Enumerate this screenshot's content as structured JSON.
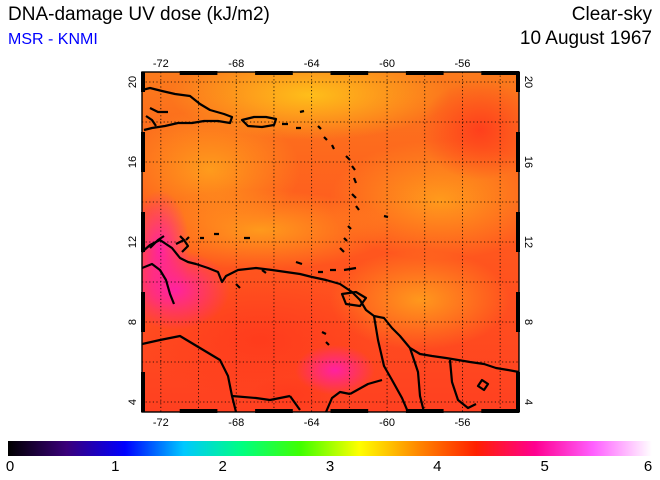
{
  "header": {
    "title": "DNA-damage UV dose (kJ/m2)",
    "source": "MSR - KNMI",
    "sky_condition": "Clear-sky",
    "date": "10 August 1967"
  },
  "map": {
    "lon_range": [
      -73,
      -53
    ],
    "lat_range": [
      3.5,
      20.5
    ],
    "lon_ticks": [
      "-72",
      "-68",
      "-64",
      "-60",
      "-56"
    ],
    "lat_ticks": [
      "4",
      "8",
      "12",
      "16",
      "20"
    ],
    "lon_values": [
      -72,
      -68,
      -64,
      -60,
      -56
    ],
    "lat_values": [
      4,
      8,
      12,
      16,
      20
    ],
    "grid": "dotted",
    "field_colors": {
      "low": "#f89018",
      "mid": "#ff5a1e",
      "high": "#ff2d6e",
      "peak": "#ff1fa8"
    }
  },
  "colorbar": {
    "labels": [
      "0",
      "1",
      "2",
      "3",
      "4",
      "5",
      "6"
    ],
    "values": [
      0,
      1,
      2,
      3,
      4,
      5,
      6
    ],
    "stops": [
      "#000000",
      "#3a007a",
      "#0000ff",
      "#00c8ff",
      "#00ff80",
      "#40ff00",
      "#ffff00",
      "#ff8800",
      "#ff2000",
      "#ff0090",
      "#ff60ff",
      "#ffffff"
    ]
  }
}
